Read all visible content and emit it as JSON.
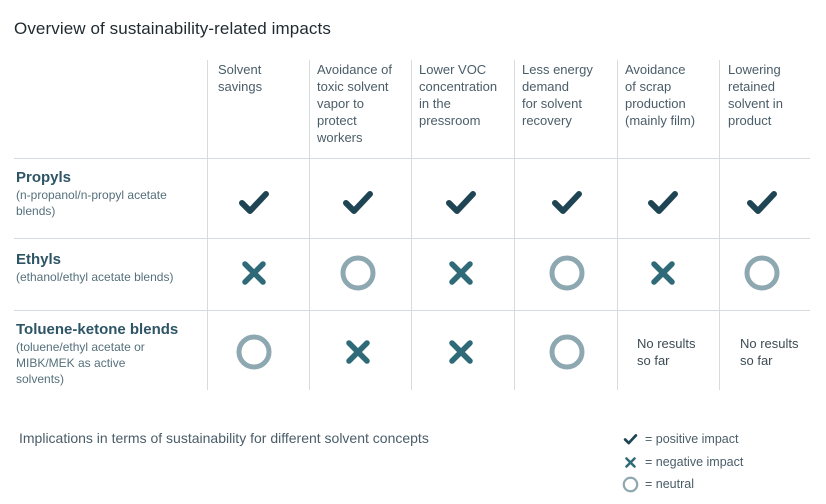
{
  "title": "Overview of sustainability-related impacts",
  "colors": {
    "check": "#1f4453",
    "cross": "#2f6a78",
    "circle": "#8ea8b1",
    "grid": "#d5dbdf"
  },
  "columns": [
    {
      "lines": [
        "Solvent",
        "savings"
      ]
    },
    {
      "lines": [
        "Avoidance of",
        "toxic solvent",
        "vapor to",
        "protect",
        "workers"
      ]
    },
    {
      "lines": [
        "Lower VOC",
        "concentration",
        "in the",
        "pressroom"
      ]
    },
    {
      "lines": [
        "Less energy",
        "demand",
        "for solvent",
        "recovery"
      ]
    },
    {
      "lines": [
        "Avoidance",
        "of  scrap",
        "production",
        "(mainly film)"
      ]
    },
    {
      "lines": [
        "Lowering",
        "retained",
        "solvent in",
        "product"
      ]
    }
  ],
  "rows": [
    {
      "label": "Propyls",
      "sub_lines": [
        "(n-propanol/n-propyl acetate",
        "blends)"
      ],
      "cells": [
        "check",
        "check",
        "check",
        "check",
        "check",
        "check"
      ]
    },
    {
      "label": "Ethyls",
      "sub_lines": [
        "(ethanol/ethyl acetate blends)"
      ],
      "cells": [
        "cross",
        "circle",
        "cross",
        "circle",
        "cross",
        "circle"
      ]
    },
    {
      "label": "Toluene-ketone blends",
      "sub_lines": [
        "(toluene/ethyl acetate or",
        "MIBK/MEK as active",
        "solvents)"
      ],
      "cells": [
        "circle",
        "cross",
        "cross",
        "circle",
        "text",
        "text"
      ],
      "cell_text": [
        "",
        "",
        "",
        "",
        "No results\nso far",
        "No results\nso far"
      ]
    }
  ],
  "caption": "Implications in terms of sustainability for different solvent concepts",
  "legend": [
    {
      "icon": "check",
      "text": "= positive impact"
    },
    {
      "icon": "cross",
      "text": "= negative impact"
    },
    {
      "icon": "circle",
      "text": "= neutral"
    }
  ]
}
